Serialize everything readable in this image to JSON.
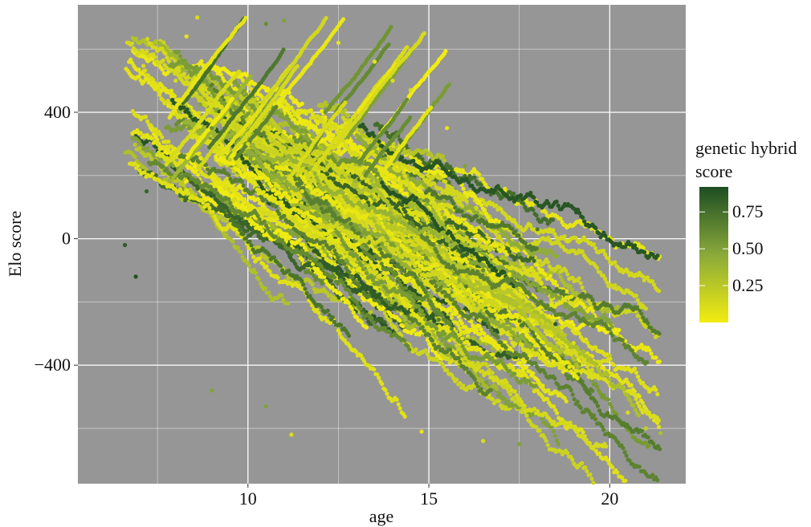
{
  "chart_data": {
    "type": "scatter",
    "title": "",
    "xlabel": "age",
    "ylabel": "Elo score",
    "xlim": [
      5.3,
      22.1
    ],
    "ylim": [
      -775,
      740
    ],
    "x_ticks": [
      10,
      15,
      20
    ],
    "x_tick_labels": [
      "10",
      "15",
      "20"
    ],
    "y_ticks": [
      400,
      0,
      -400
    ],
    "y_tick_labels": [
      "400",
      "0",
      "−400"
    ],
    "x_minor_gridlines": [
      7.5,
      12.5,
      17.5
    ],
    "y_minor_gridlines": [
      600,
      200,
      -200,
      -600
    ],
    "grid": true,
    "panel_color": "#969696",
    "grid_color": "#ffffff",
    "legend": {
      "title_lines": [
        "genetic hybrid",
        "score"
      ],
      "placement": "right",
      "colorbar_min": 0.0,
      "colorbar_max": 0.92,
      "ticks": [
        0.75,
        0.5,
        0.25
      ],
      "tick_labels": [
        "0.75",
        "0.50",
        "0.25"
      ],
      "color_low": "#f2ec10",
      "color_mid": "#8aa93a",
      "color_high": "#1d4d23"
    },
    "color_variable": "genetic hybrid score",
    "trajectory_count": 160,
    "series": [
      {
        "description_free": true,
        "values": [
          [
            6.6,
            -20,
            0.85
          ],
          [
            6.9,
            -120,
            0.9
          ],
          [
            7.2,
            150,
            0.8
          ],
          [
            7.5,
            300,
            0.1
          ],
          [
            7.8,
            420,
            0.05
          ],
          [
            8.0,
            500,
            0.1
          ],
          [
            8.3,
            640,
            0.05
          ],
          [
            8.6,
            700,
            0.1
          ],
          [
            9.0,
            350,
            0.6
          ],
          [
            9.5,
            250,
            0.2
          ],
          [
            10.0,
            300,
            0.1
          ],
          [
            10.5,
            680,
            0.6
          ],
          [
            11.0,
            690,
            0.5
          ],
          [
            11.5,
            150,
            0.1
          ],
          [
            12.0,
            0,
            0.2
          ],
          [
            12.5,
            620,
            0.05
          ],
          [
            13.0,
            100,
            0.1
          ],
          [
            13.5,
            560,
            0.05
          ],
          [
            14.0,
            500,
            0.1
          ],
          [
            14.5,
            470,
            0.1
          ],
          [
            15.0,
            20,
            0.3
          ],
          [
            15.5,
            350,
            0.05
          ],
          [
            16.0,
            230,
            0.5
          ],
          [
            16.5,
            -100,
            0.6
          ],
          [
            17.0,
            -300,
            0.1
          ],
          [
            17.5,
            -50,
            0.6
          ],
          [
            18.0,
            30,
            0.7
          ],
          [
            18.5,
            -270,
            0.85
          ],
          [
            19.0,
            -330,
            0.1
          ],
          [
            19.5,
            -260,
            0.4
          ],
          [
            20.0,
            -370,
            0.2
          ],
          [
            20.5,
            -550,
            0.1
          ],
          [
            21.0,
            -600,
            0.2
          ],
          [
            21.4,
            -615,
            0.3
          ],
          [
            11.2,
            -620,
            0.1
          ],
          [
            14.8,
            -610,
            0.05
          ],
          [
            16.5,
            -640,
            0.1
          ],
          [
            17.5,
            -650,
            0.5
          ],
          [
            9.0,
            -480,
            0.5
          ],
          [
            10.5,
            -530,
            0.5
          ]
        ]
      }
    ]
  }
}
